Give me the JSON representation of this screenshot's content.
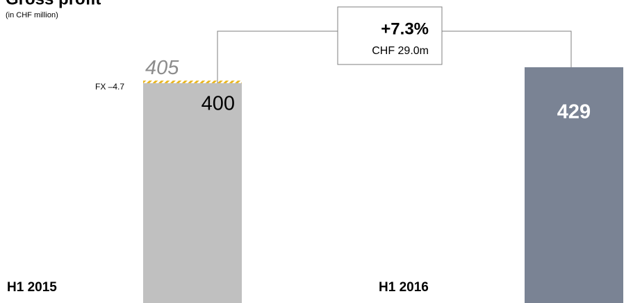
{
  "chart_data": {
    "type": "bar",
    "title": "Gross profit",
    "subtitle": "(in CHF million)",
    "categories": [
      "H1 2015",
      "H1 2016"
    ],
    "values": [
      400,
      429
    ],
    "colors": [
      "#c0c0c0",
      "#7a8394"
    ],
    "restated": {
      "value": 405
    },
    "fx_adjustment": {
      "value": -4.7,
      "label": "FX –4.7"
    },
    "growth": {
      "value": 7.3,
      "label": "+7.3%"
    },
    "change": {
      "value": 29.0,
      "label": "CHF 29.0m"
    }
  }
}
